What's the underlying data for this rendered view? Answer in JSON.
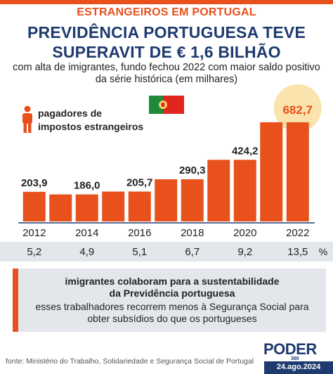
{
  "header": {
    "kicker": "ESTRANGEIROS EM PORTUGAL",
    "title_line1": "PREVIDÊNCIA PORTUGUESA TEVE",
    "title_line2": "SUPERAVIT DE € 1,6 BILHÃO",
    "subtitle_line1": "com alta de imigrantes, fundo fechou 2022 com maior saldo positivo",
    "subtitle_line2": "da série histórica (em milhares)"
  },
  "legend": {
    "line1": "pagadores de",
    "line2": "impostos estrangeiros",
    "icon": "person-icon"
  },
  "flag": {
    "icon": "portugal-flag-icon"
  },
  "chart_data": {
    "type": "bar",
    "categories": [
      "2012",
      "2013",
      "2014",
      "2015",
      "2016",
      "2017",
      "2018",
      "2019",
      "2020",
      "2021",
      "2022"
    ],
    "values": [
      203.9,
      186.0,
      186.0,
      205.7,
      205.7,
      290.3,
      290.3,
      424.2,
      424.2,
      682.7,
      682.7
    ],
    "tick_labels": [
      "2012",
      "2014",
      "2016",
      "2018",
      "2020",
      "2022"
    ],
    "value_labels": [
      {
        "index": 0,
        "label": "203,9"
      },
      {
        "index": 2,
        "label": "186,0"
      },
      {
        "index": 4,
        "label": "205,7"
      },
      {
        "index": 6,
        "label": "290,3"
      },
      {
        "index": 8,
        "label": "424,2"
      },
      {
        "index": 10,
        "label": "682,7"
      }
    ],
    "percent_row": [
      "5,2",
      "4,9",
      "5,1",
      "6,7",
      "9,2",
      "13,5"
    ],
    "percent_unit": "%",
    "ylim": [
      0,
      750
    ],
    "bar_color": "#e8501c",
    "highlight_color": "#fbe3ad",
    "axis_color": "#1e3a6e"
  },
  "info_box": {
    "line1": "imigrantes colaboram para a sustentabilidade",
    "line2": "da Previdência portuguesa",
    "line3": "esses trabalhadores recorrem menos à Segurança Social para",
    "line4": "obter subsídios do que os portugueses"
  },
  "footer": {
    "source": "fonte: Ministério do Trabalho, Solidariedade e Segurança Social de Portugal",
    "logo": "PODER",
    "logo_sub": "360",
    "date": "24.ago.2024"
  }
}
